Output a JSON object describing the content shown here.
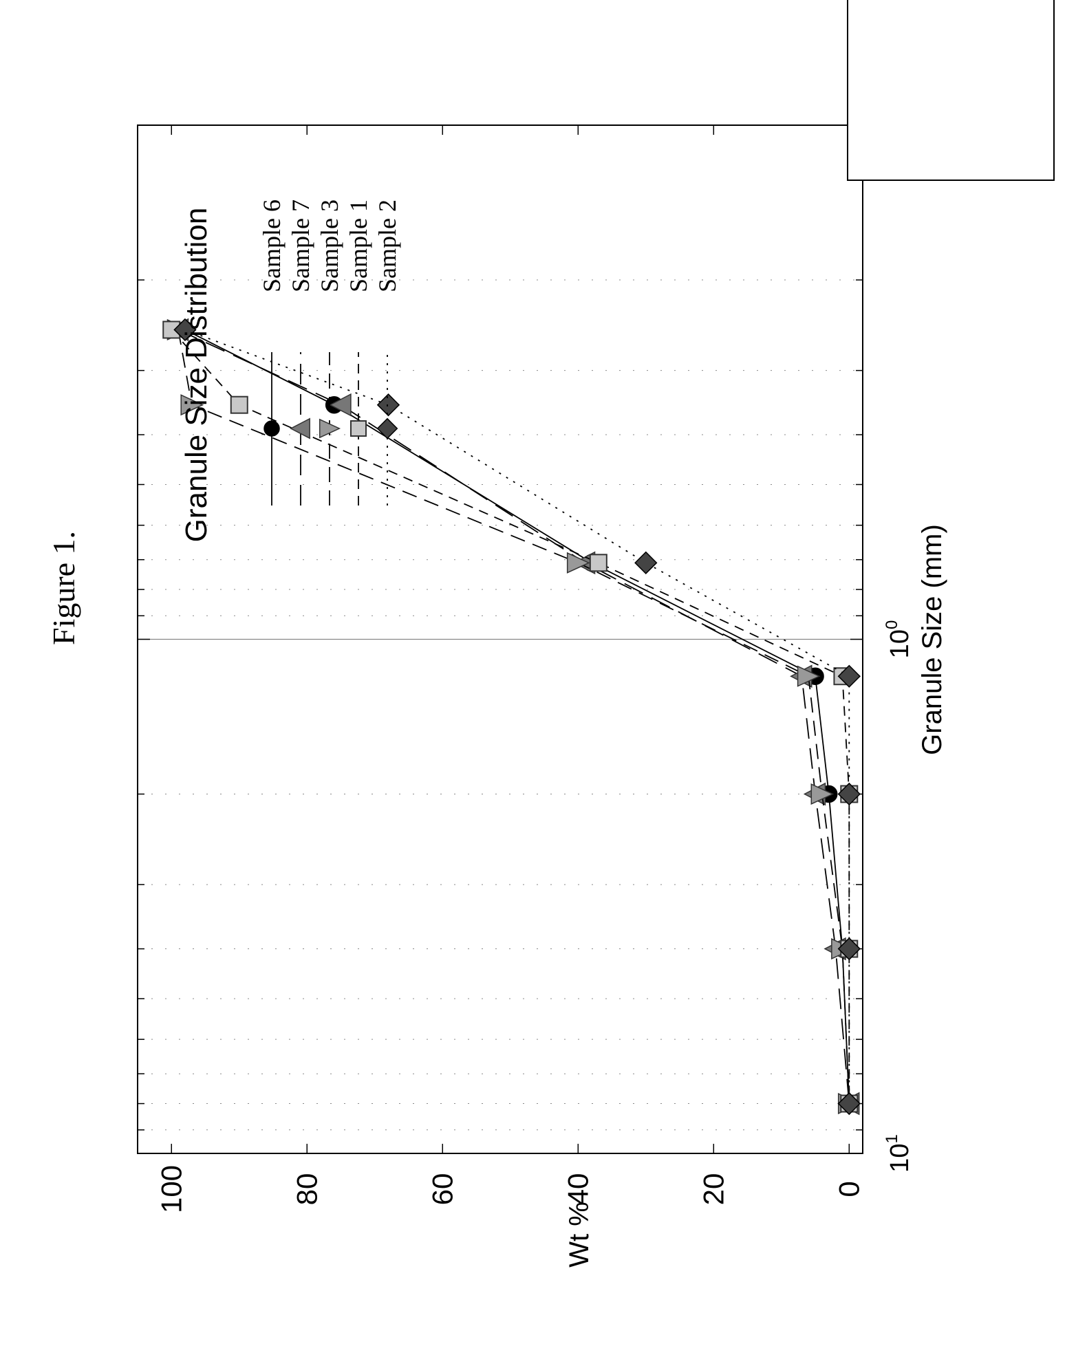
{
  "figure_label": "Figure 1.",
  "chart_data": {
    "type": "line",
    "title": "Granule Size Distribution",
    "xlabel": "Granule Size (mm)",
    "ylabel": "Wt %",
    "x_scale": "log",
    "x_range": [
      0.1,
      10
    ],
    "ylim": [
      -2,
      105
    ],
    "y_ticks": [
      0,
      20,
      40,
      60,
      80,
      100
    ],
    "x_tick_labels": [
      {
        "value": 1,
        "label": "10",
        "exp": "0"
      },
      {
        "value": 10,
        "label": "10",
        "exp": "1"
      }
    ],
    "minor_grid": true,
    "legend_position": "top-right",
    "orientation": "rotated-90-ccw",
    "x": [
      0.25,
      0.35,
      0.71,
      1.18,
      2.0,
      4.0,
      8.0
    ],
    "series": [
      {
        "name": "Sample 6",
        "marker": "circle",
        "dash": "solid",
        "color": "#000000",
        "values": [
          98,
          76,
          38,
          5,
          3,
          1,
          0
        ]
      },
      {
        "name": "Sample 7",
        "marker": "triangle-left",
        "dash": "long-dash",
        "color": "#777777",
        "values": [
          99,
          75,
          39,
          7,
          5,
          2,
          0
        ]
      },
      {
        "name": "Sample 3",
        "marker": "triangle-down",
        "dash": "dash",
        "color": "#999999",
        "values": [
          99,
          97,
          40,
          6,
          4,
          1,
          0
        ]
      },
      {
        "name": "Sample 1",
        "marker": "square",
        "dash": "short-dash",
        "color": "#c8c8c8",
        "values": [
          100,
          90,
          37,
          1,
          0,
          0,
          0
        ]
      },
      {
        "name": "Sample 2",
        "marker": "diamond",
        "dash": "dotted",
        "color": "#444444",
        "values": [
          98,
          68,
          30,
          0,
          0,
          0,
          0
        ]
      }
    ]
  }
}
